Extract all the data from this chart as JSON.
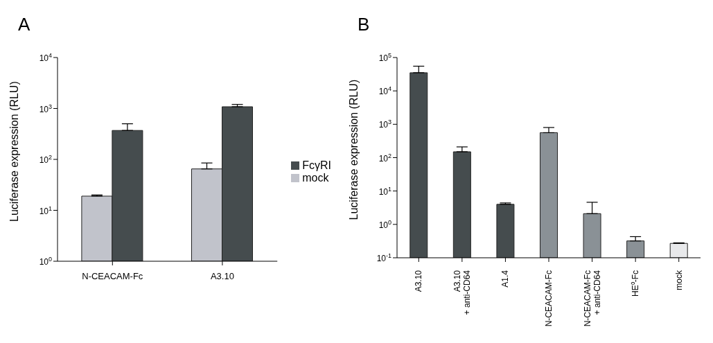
{
  "chart_data": [
    {
      "type": "bar",
      "title": "A",
      "ylabel": "Luciferase expression (RLU)",
      "categories": [
        "N-CEACAM-Fc",
        "A3.10"
      ],
      "log": "y",
      "ylim": [
        1,
        10000
      ],
      "yticks": [
        {
          "value": 1,
          "label": "10$^{0}$"
        },
        {
          "value": 10,
          "label": "10$^{1}$"
        },
        {
          "value": 100,
          "label": "10$^{2}$"
        },
        {
          "value": 1000,
          "label": "10$^{3}$"
        },
        {
          "value": 10000,
          "label": "10$^{4}$"
        }
      ],
      "legend": "right",
      "grid": false,
      "series": [
        {
          "name": "mock",
          "color": "#c1c3cb",
          "values": [
            19,
            65
          ],
          "errors": [
            [
              19,
              20
            ],
            [
              65,
              85
            ]
          ]
        },
        {
          "name": "FcγRI",
          "color": "#454c4e",
          "values": [
            370,
            1080
          ],
          "errors": [
            [
              370,
              500
            ],
            [
              1080,
              1200
            ]
          ]
        }
      ]
    },
    {
      "type": "bar",
      "title": "B",
      "ylabel": "Luciferase expression (RLU)",
      "categories": [
        "A3.10",
        "A3.10\n+ anti-CD64",
        "A1.4",
        "N-CEACAM-Fc",
        "N-CEACAM-Fc\n+ anti-CD64",
        "HE⁰-Fc",
        "mock"
      ],
      "log": "y",
      "ylim": [
        0.1,
        100000
      ],
      "yticks": [
        {
          "value": 0.1,
          "label": "10$^{-1}$"
        },
        {
          "value": 1,
          "label": "10$^{0}$"
        },
        {
          "value": 10,
          "label": "10$^{1}$"
        },
        {
          "value": 100,
          "label": "10$^{2}$"
        },
        {
          "value": 1000,
          "label": "10$^{3}$"
        },
        {
          "value": 10000,
          "label": "10$^{4}$"
        },
        {
          "value": 100000,
          "label": "10$^{5}$"
        }
      ],
      "legend": false,
      "grid": false,
      "values": [
        35000,
        150,
        4,
        560,
        2.1,
        0.32,
        0.27
      ],
      "colors": [
        "#454c4e",
        "#454c4e",
        "#454c4e",
        "#8a9196",
        "#8a9196",
        "#8a9196",
        "#e8e9eb"
      ],
      "errors": [
        [
          35000,
          55000
        ],
        [
          150,
          210
        ],
        [
          4,
          4.4
        ],
        [
          560,
          800
        ],
        [
          2.1,
          4.6
        ],
        [
          0.32,
          0.43
        ],
        [
          0.27,
          0.28
        ]
      ]
    }
  ]
}
